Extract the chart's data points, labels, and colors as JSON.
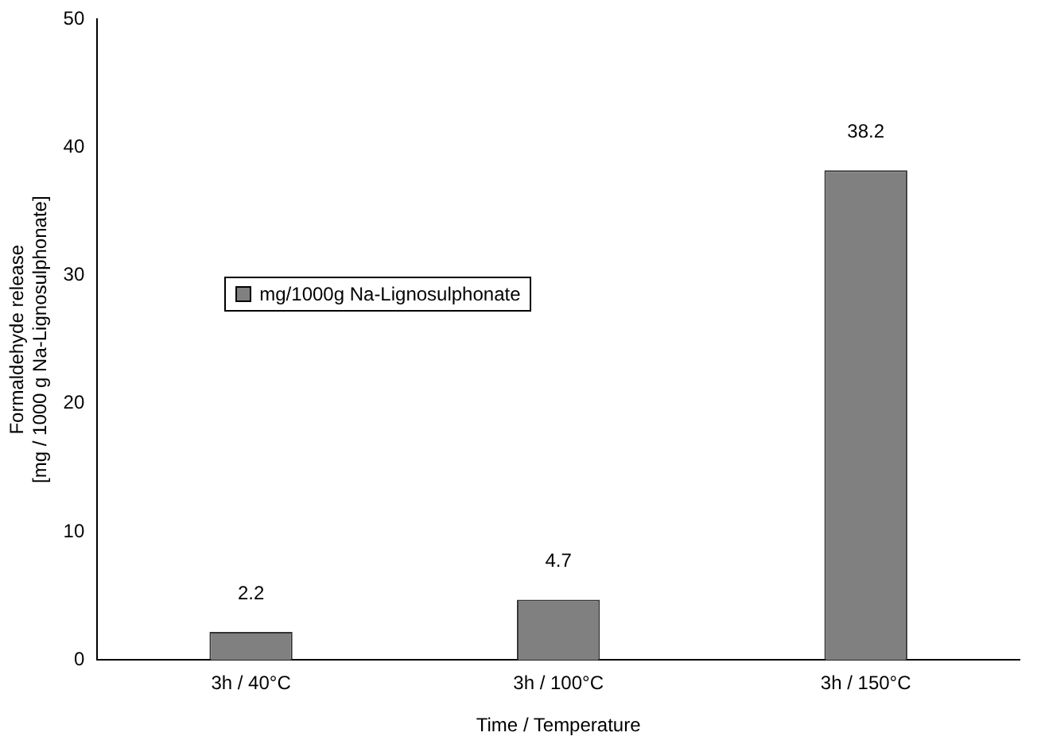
{
  "chart_data": {
    "type": "bar",
    "xlabel": "Time / Temperature",
    "ylabel": "Formaldehyde release\n[mg / 1000 g Na-Lignosulphonate]",
    "categories": [
      "3h / 40°C",
      "3h / 100°C",
      "3h / 150°C"
    ],
    "series": [
      {
        "name": "mg/1000g Na-Lignosulphonate",
        "color": "#808080",
        "values": [
          2.2,
          4.7,
          38.2
        ]
      }
    ],
    "ylim": [
      0,
      50
    ],
    "yticks": [
      0,
      10,
      20,
      30,
      40,
      50
    ],
    "grid": false,
    "legend": "left",
    "data_labels": true
  }
}
